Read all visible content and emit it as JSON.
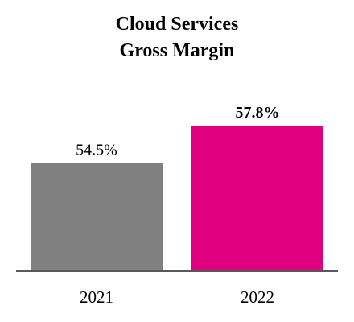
{
  "chart_data": {
    "type": "bar",
    "title_lines": [
      "Cloud Services",
      "Gross Margin"
    ],
    "categories": [
      "2021",
      "2022"
    ],
    "values": [
      54.5,
      57.8
    ],
    "value_labels": [
      "54.5%",
      "57.8%"
    ],
    "value_label_bold": [
      false,
      true
    ],
    "bar_colors": [
      "#808080",
      "#E0007F"
    ],
    "xlabel": "",
    "ylabel": "",
    "ylim": [
      45,
      60
    ],
    "grid": false,
    "legend": "none"
  }
}
